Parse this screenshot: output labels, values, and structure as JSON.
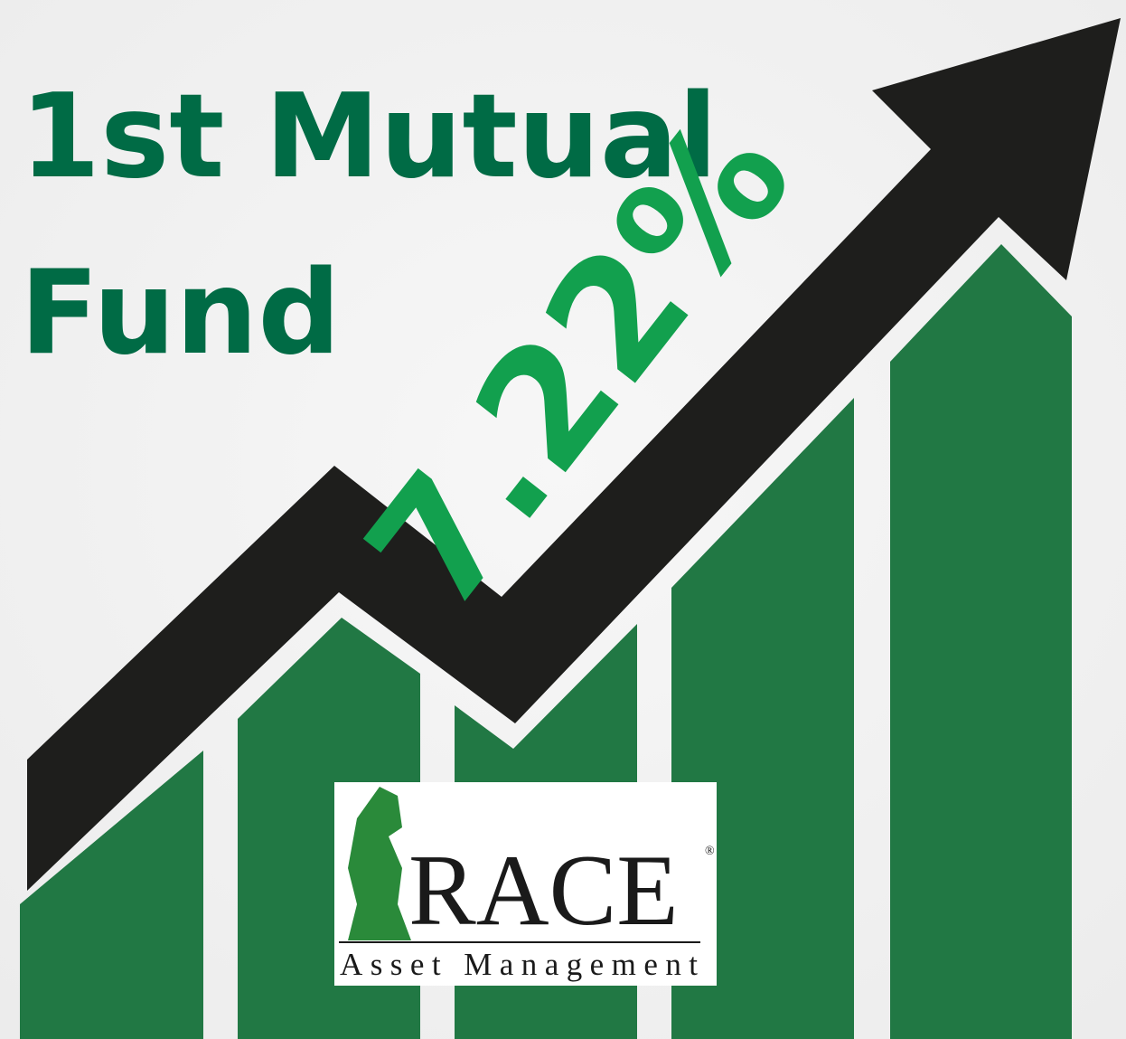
{
  "title": [
    "1st Mutual",
    "Fund"
  ],
  "highlight": "7.22%",
  "logo": {
    "name": "RACE",
    "mark": "®",
    "tagline": "Asset Management"
  }
}
